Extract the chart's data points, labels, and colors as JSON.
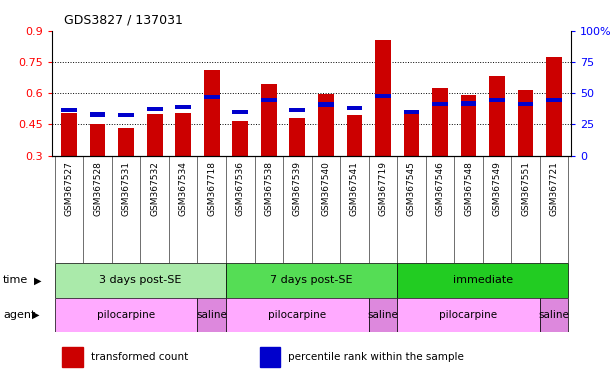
{
  "title": "GDS3827 / 137031",
  "samples": [
    "GSM367527",
    "GSM367528",
    "GSM367531",
    "GSM367532",
    "GSM367534",
    "GSM367718",
    "GSM367536",
    "GSM367538",
    "GSM367539",
    "GSM367540",
    "GSM367541",
    "GSM367719",
    "GSM367545",
    "GSM367546",
    "GSM367548",
    "GSM367549",
    "GSM367551",
    "GSM367721"
  ],
  "red_values": [
    0.505,
    0.45,
    0.432,
    0.502,
    0.505,
    0.71,
    0.468,
    0.645,
    0.48,
    0.597,
    0.495,
    0.855,
    0.5,
    0.625,
    0.592,
    0.68,
    0.615,
    0.775
  ],
  "blue_values": [
    0.52,
    0.497,
    0.495,
    0.522,
    0.535,
    0.58,
    0.51,
    0.568,
    0.52,
    0.545,
    0.53,
    0.585,
    0.51,
    0.548,
    0.55,
    0.565,
    0.548,
    0.565
  ],
  "ylim_left": [
    0.3,
    0.9
  ],
  "yticks_left": [
    0.3,
    0.45,
    0.6,
    0.75,
    0.9
  ],
  "yticks_right": [
    0,
    25,
    50,
    75,
    100
  ],
  "groups": [
    {
      "label": "3 days post-SE",
      "start": 0,
      "end": 5,
      "color": "#aaeaaa"
    },
    {
      "label": "7 days post-SE",
      "start": 6,
      "end": 11,
      "color": "#55dd55"
    },
    {
      "label": "immediate",
      "start": 12,
      "end": 17,
      "color": "#22cc22"
    }
  ],
  "agents": [
    {
      "label": "pilocarpine",
      "start": 0,
      "end": 4,
      "color": "#ffaaff"
    },
    {
      "label": "saline",
      "start": 5,
      "end": 5,
      "color": "#dd88dd"
    },
    {
      "label": "pilocarpine",
      "start": 6,
      "end": 10,
      "color": "#ffaaff"
    },
    {
      "label": "saline",
      "start": 11,
      "end": 11,
      "color": "#dd88dd"
    },
    {
      "label": "pilocarpine",
      "start": 12,
      "end": 16,
      "color": "#ffaaff"
    },
    {
      "label": "saline",
      "start": 17,
      "end": 17,
      "color": "#dd88dd"
    }
  ],
  "bar_width": 0.55,
  "red_color": "#cc0000",
  "blue_color": "#0000cc",
  "ybase": 0.3,
  "xlim": [
    -0.6,
    17.6
  ],
  "label_row_color": "#dddddd",
  "grid_dotted_values": [
    0.45,
    0.6,
    0.75
  ],
  "legend_items": [
    {
      "color": "#cc0000",
      "label": "transformed count"
    },
    {
      "color": "#0000cc",
      "label": "percentile rank within the sample"
    }
  ]
}
